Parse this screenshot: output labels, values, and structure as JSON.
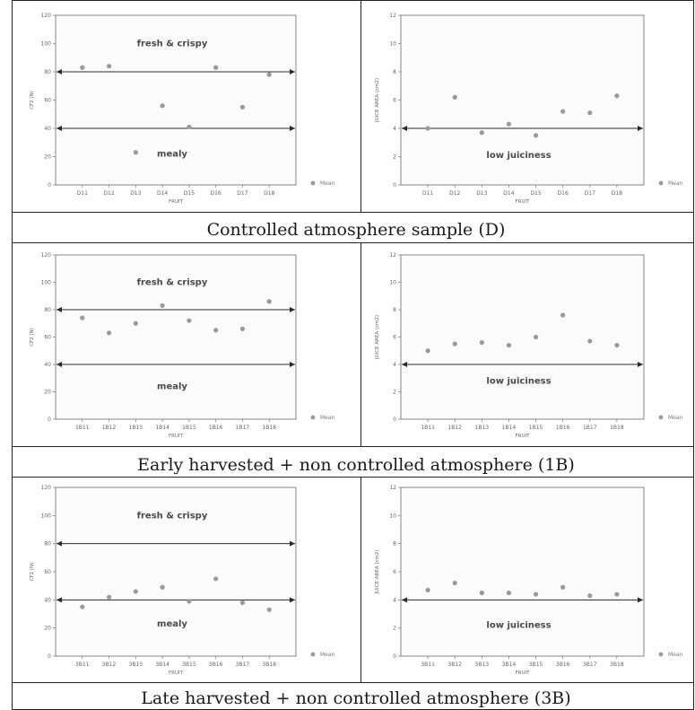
{
  "chart_data": [
    {
      "type": "scatter",
      "ylabel": "CF2 (N)",
      "xlabel": "FRUIT",
      "categories": [
        "D11",
        "D12",
        "D13",
        "D14",
        "D15",
        "D16",
        "D17",
        "D18"
      ],
      "ylim": [
        0,
        120
      ],
      "yticks": [
        0,
        20,
        40,
        60,
        80,
        100,
        120
      ],
      "series": [
        {
          "name": "Mean",
          "values": [
            83,
            84,
            23,
            56,
            41,
            83,
            55,
            78
          ]
        }
      ],
      "hlines": [
        80,
        40
      ],
      "annotations": [
        {
          "text": "fresh & crispy",
          "y": 100
        },
        {
          "text": "mealy",
          "y": 22
        }
      ],
      "legend": "Mean"
    },
    {
      "type": "scatter",
      "ylabel": "JUICE AREA (cm2)",
      "xlabel": "FRUIT",
      "categories": [
        "D11",
        "D12",
        "D13",
        "D14",
        "D15",
        "D16",
        "D17",
        "D18"
      ],
      "ylim": [
        0,
        12
      ],
      "yticks": [
        0,
        2,
        4,
        6,
        8,
        10,
        12
      ],
      "series": [
        {
          "name": "Mean",
          "values": [
            4.0,
            6.2,
            3.7,
            4.3,
            3.5,
            5.2,
            5.1,
            6.3
          ]
        }
      ],
      "hlines": [
        4
      ],
      "annotations": [
        {
          "text": "low juiciness",
          "y": 2.1
        }
      ],
      "legend": "Mean"
    },
    {
      "type": "scatter",
      "ylabel": "CF2 (N)",
      "xlabel": "FRUIT",
      "categories": [
        "1B11",
        "1B12",
        "1B13",
        "1B14",
        "1B15",
        "1B16",
        "1B17",
        "1B18"
      ],
      "ylim": [
        0,
        120
      ],
      "yticks": [
        0,
        20,
        40,
        60,
        80,
        100,
        120
      ],
      "series": [
        {
          "name": "Mean",
          "values": [
            74,
            63,
            70,
            83,
            72,
            65,
            66,
            86
          ]
        }
      ],
      "hlines": [
        80,
        40
      ],
      "annotations": [
        {
          "text": "fresh & crispy",
          "y": 100
        },
        {
          "text": "mealy",
          "y": 24
        }
      ],
      "legend": "Mean"
    },
    {
      "type": "scatter",
      "ylabel": "JUICE AREA (cm2)",
      "xlabel": "FRUIT",
      "categories": [
        "1B11",
        "1B12",
        "1B13",
        "1B14",
        "1B15",
        "1B16",
        "1B17",
        "1B18"
      ],
      "ylim": [
        0,
        12
      ],
      "yticks": [
        0,
        2,
        4,
        6,
        8,
        10,
        12
      ],
      "series": [
        {
          "name": "Mean",
          "values": [
            5.0,
            5.5,
            5.6,
            5.4,
            6.0,
            7.6,
            5.7,
            5.4
          ]
        }
      ],
      "hlines": [
        4
      ],
      "annotations": [
        {
          "text": "low juiciness",
          "y": 2.8
        }
      ],
      "legend": "Mean"
    },
    {
      "type": "scatter",
      "ylabel": "CF2 (N)",
      "xlabel": "FRUIT",
      "categories": [
        "3B11",
        "3B12",
        "3B13",
        "3B14",
        "3B15",
        "3B16",
        "3B17",
        "3B18"
      ],
      "ylim": [
        0,
        120
      ],
      "yticks": [
        0,
        20,
        40,
        60,
        80,
        100,
        120
      ],
      "series": [
        {
          "name": "Mean",
          "values": [
            35,
            42,
            46,
            49,
            39,
            55,
            38,
            33
          ]
        }
      ],
      "hlines": [
        80,
        40
      ],
      "annotations": [
        {
          "text": "fresh & crispy",
          "y": 100
        },
        {
          "text": "mealy",
          "y": 23
        }
      ],
      "legend": "Mean"
    },
    {
      "type": "scatter",
      "ylabel": "JUICE AREA (cm2)",
      "xlabel": "FRUIT",
      "categories": [
        "3B11",
        "3B12",
        "3B13",
        "3B14",
        "3B15",
        "3B16",
        "3B17",
        "3B18"
      ],
      "ylim": [
        0,
        12
      ],
      "yticks": [
        0,
        2,
        4,
        6,
        8,
        10,
        12
      ],
      "series": [
        {
          "name": "Mean",
          "values": [
            4.7,
            5.2,
            4.5,
            4.5,
            4.4,
            4.9,
            4.3,
            4.4
          ]
        }
      ],
      "hlines": [
        4
      ],
      "annotations": [
        {
          "text": "low juiciness",
          "y": 2.2
        }
      ],
      "legend": "Mean"
    }
  ],
  "captions": [
    "Controlled atmosphere sample (D)",
    "Early harvested + non controlled atmosphere (1B)",
    "Late harvested  + non controlled atmosphere (3B)"
  ]
}
